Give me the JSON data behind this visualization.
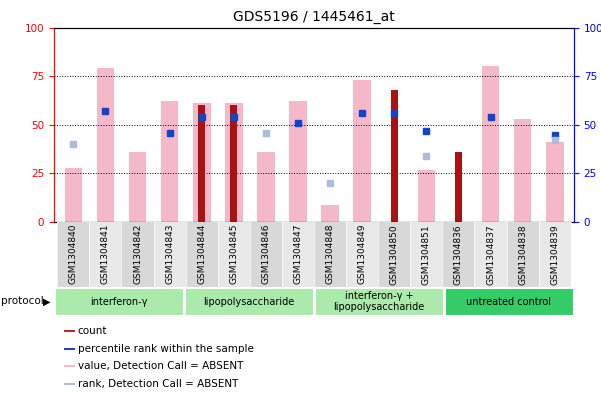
{
  "title": "GDS5196 / 1445461_at",
  "samples": [
    "GSM1304840",
    "GSM1304841",
    "GSM1304842",
    "GSM1304843",
    "GSM1304844",
    "GSM1304845",
    "GSM1304846",
    "GSM1304847",
    "GSM1304848",
    "GSM1304849",
    "GSM1304850",
    "GSM1304851",
    "GSM1304836",
    "GSM1304837",
    "GSM1304838",
    "GSM1304839"
  ],
  "red_bars": [
    0,
    0,
    0,
    0,
    60,
    60,
    0,
    0,
    0,
    0,
    68,
    0,
    36,
    0,
    0,
    0
  ],
  "blue_dots": [
    0,
    57,
    0,
    46,
    54,
    54,
    0,
    51,
    0,
    56,
    56,
    47,
    0,
    54,
    0,
    45
  ],
  "pink_bars": [
    28,
    79,
    36,
    62,
    61,
    61,
    36,
    62,
    9,
    73,
    0,
    27,
    0,
    80,
    53,
    41
  ],
  "light_blue_dots": [
    40,
    0,
    0,
    0,
    0,
    0,
    46,
    0,
    20,
    0,
    0,
    34,
    0,
    0,
    0,
    42
  ],
  "group_starts": [
    0,
    4,
    8,
    12
  ],
  "group_ends": [
    4,
    8,
    12,
    16
  ],
  "group_labels": [
    "interferon-γ",
    "lipopolysaccharide",
    "interferon-γ +\nlipopolysaccharide",
    "untreated control"
  ],
  "group_colors": [
    "#aaeaaa",
    "#aaeaaa",
    "#aaeaaa",
    "#33cc66"
  ],
  "ylim": [
    0,
    100
  ],
  "pink_bar_color": "#f4b8c8",
  "red_bar_color": "#aa1111",
  "blue_dot_color": "#1144cc",
  "light_blue_dot_color": "#aabbdd",
  "legend_red_color": "#cc2222",
  "legend_blue_color": "#2244bb",
  "legend_pink_color": "#f4b8c8",
  "legend_lb_color": "#aabbdd"
}
